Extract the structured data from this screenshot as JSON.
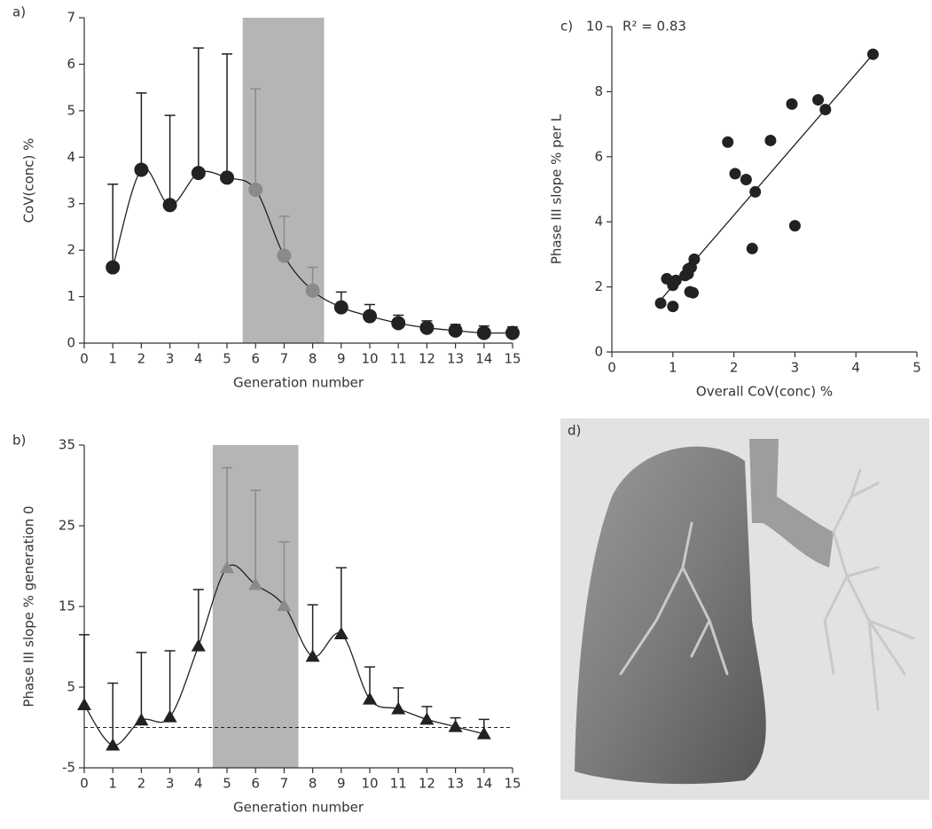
{
  "chart_data": [
    {
      "type": "line",
      "label": "a)",
      "xlabel": "Generation number",
      "ylabel": "CoV(conc) %",
      "x": [
        1,
        2,
        3,
        4,
        5,
        6,
        7,
        8,
        9,
        10,
        11,
        12,
        13,
        14,
        15
      ],
      "values": [
        1.63,
        3.73,
        2.97,
        3.66,
        3.56,
        3.3,
        1.88,
        1.13,
        0.77,
        0.58,
        0.43,
        0.33,
        0.27,
        0.22,
        0.22
      ],
      "errors": [
        1.79,
        1.65,
        1.93,
        2.69,
        2.66,
        2.17,
        0.85,
        0.5,
        0.33,
        0.25,
        0.17,
        0.15,
        0.13,
        0.15,
        0.13
      ],
      "marker": "circle",
      "color": "#222222",
      "highlight_color": "#8a8a8a",
      "shade": [
        5.55,
        8.4
      ],
      "shade_color": "#b5b5b5",
      "xlim": [
        0,
        15
      ],
      "xticks": [
        0,
        1,
        2,
        3,
        4,
        5,
        6,
        7,
        8,
        9,
        10,
        11,
        12,
        13,
        14,
        15
      ],
      "ylim": [
        0,
        7
      ],
      "yticks": [
        0,
        1,
        2,
        3,
        4,
        5,
        6,
        7
      ]
    },
    {
      "type": "line",
      "label": "b)",
      "xlabel": "Generation number",
      "ylabel": "Phase III slope % generation 0",
      "x": [
        0,
        1,
        2,
        3,
        4,
        5,
        6,
        7,
        8,
        9,
        10,
        11,
        12,
        13,
        14
      ],
      "values": [
        2.8,
        -2.2,
        0.9,
        1.3,
        10.1,
        19.8,
        17.7,
        15.1,
        8.8,
        11.6,
        3.5,
        2.3,
        1.0,
        0.1,
        -0.8
      ],
      "errors": [
        8.7,
        7.7,
        8.4,
        8.2,
        7.0,
        12.4,
        11.7,
        7.9,
        6.4,
        8.2,
        4.0,
        2.6,
        1.6,
        1.1,
        1.8
      ],
      "marker": "triangle",
      "color": "#222222",
      "highlight_color": "#8a8a8a",
      "shade": [
        4.5,
        7.5
      ],
      "shade_color": "#b5b5b5",
      "hline": 0,
      "xlim": [
        0,
        15
      ],
      "xticks": [
        0,
        1,
        2,
        3,
        4,
        5,
        6,
        7,
        8,
        9,
        10,
        11,
        12,
        13,
        14,
        15
      ],
      "ylim": [
        -5,
        35
      ],
      "yticks": [
        -5,
        5,
        15,
        25,
        35
      ]
    },
    {
      "type": "scatter",
      "label": "c)",
      "annotation": "R² = 0.83",
      "xlabel": "Overall CoV(conc) %",
      "ylabel": "Phase III slope % per L",
      "x": [
        4.28,
        3.38,
        3.5,
        2.95,
        2.6,
        1.9,
        2.02,
        2.2,
        2.35,
        3.0,
        2.3,
        1.35,
        1.3,
        1.25,
        1.2,
        1.25,
        1.0,
        1.05,
        0.9,
        1.0,
        1.28,
        1.33,
        0.8,
        1.0
      ],
      "values": [
        9.15,
        7.75,
        7.45,
        7.62,
        6.5,
        6.45,
        5.48,
        5.3,
        4.92,
        3.88,
        3.18,
        2.85,
        2.6,
        2.55,
        2.35,
        2.4,
        2.1,
        2.2,
        2.25,
        2.05,
        1.85,
        1.82,
        1.5,
        1.4
      ],
      "fit": {
        "x": [
          0.8,
          4.28
        ],
        "y": [
          1.6,
          9.15
        ]
      },
      "color": "#222222",
      "xlim": [
        0,
        5
      ],
      "xticks": [
        0,
        1,
        2,
        3,
        4,
        5
      ],
      "ylim": [
        0,
        10
      ],
      "yticks": [
        0,
        2,
        4,
        6,
        8,
        10
      ]
    },
    {
      "type": "image",
      "label": "d)"
    }
  ]
}
